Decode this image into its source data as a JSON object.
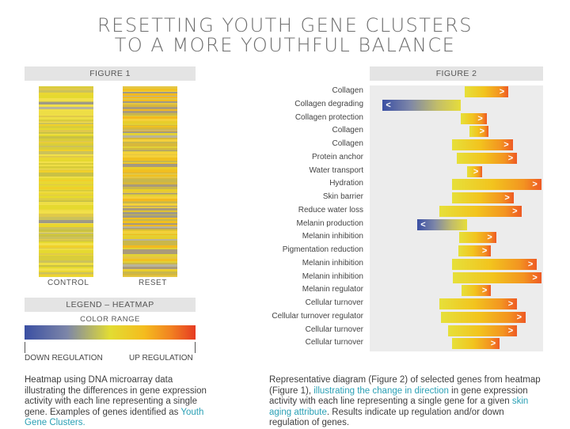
{
  "title": {
    "line1": "RESETTING YOUTH GENE CLUSTERS",
    "line2": "TO A MORE YOUTHFUL BALANCE"
  },
  "figure1": {
    "header": "FIGURE 1",
    "control_label": "CONTROL",
    "reset_label": "RESET"
  },
  "figure2": {
    "header": "FIGURE 2"
  },
  "legend": {
    "header": "LEGEND – HEATMAP",
    "color_range": "COLOR RANGE",
    "down": "DOWN REGULATION",
    "up": "UP REGULATION"
  },
  "colors": {
    "down": "#3a4fa3",
    "neutral": "#e2dc33",
    "up": "#e63b22",
    "accent": "#2aa0b5"
  },
  "caption_left": {
    "text": "Heatmap using DNA microarray data illustrating the differences in gene expression activity with each line representing a single gene. Examples of genes identified as ",
    "highlight": "Youth Gene Clusters."
  },
  "caption_right": {
    "part1": "Representative diagram (Figure 2) of selected genes from heatmap (Figure 1), ",
    "highlight1": "illustrating the change in direction",
    "part2": " in gene expression activity with each line representing a single gene for a given ",
    "highlight2": "skin aging attribute",
    "part3": ". Results indicate up regulation and/or down regulation of genes."
  },
  "chart_data": [
    {
      "type": "heatmap",
      "title": "FIGURE 1",
      "columns": [
        "CONTROL",
        "RESET"
      ],
      "color_scale": {
        "low": "DOWN REGULATION",
        "high": "UP REGULATION"
      }
    },
    {
      "type": "bar",
      "title": "FIGURE 2",
      "orientation": "horizontal-diverging",
      "xlim": [
        -1,
        1
      ],
      "genes": [
        {
          "label": "Collagen",
          "start": 0.1,
          "end": 0.6,
          "direction": "up"
        },
        {
          "label": "Collagen degrading",
          "start": -0.85,
          "end": 0.05,
          "direction": "down"
        },
        {
          "label": "Collagen protection",
          "start": 0.05,
          "end": 0.35,
          "direction": "up"
        },
        {
          "label": "Collagen",
          "start": 0.15,
          "end": 0.37,
          "direction": "up"
        },
        {
          "label": "Collagen",
          "start": -0.05,
          "end": 0.65,
          "direction": "up"
        },
        {
          "label": "Protein anchor",
          "start": 0.0,
          "end": 0.7,
          "direction": "up"
        },
        {
          "label": "Water transport",
          "start": 0.12,
          "end": 0.3,
          "direction": "up"
        },
        {
          "label": "Hydration",
          "start": -0.05,
          "end": 0.98,
          "direction": "up"
        },
        {
          "label": "Skin barrier",
          "start": -0.05,
          "end": 0.66,
          "direction": "up"
        },
        {
          "label": "Reduce water loss",
          "start": -0.2,
          "end": 0.75,
          "direction": "up"
        },
        {
          "label": "Melanin production",
          "start": -0.45,
          "end": 0.12,
          "direction": "down"
        },
        {
          "label": "Melanin inhibition",
          "start": 0.03,
          "end": 0.46,
          "direction": "up"
        },
        {
          "label": "Pigmentation reduction",
          "start": 0.02,
          "end": 0.4,
          "direction": "up"
        },
        {
          "label": "Melanin inhibition",
          "start": -0.05,
          "end": 0.93,
          "direction": "up"
        },
        {
          "label": "Melanin inhibition",
          "start": -0.04,
          "end": 0.98,
          "direction": "up"
        },
        {
          "label": "Melanin regulator",
          "start": 0.06,
          "end": 0.4,
          "direction": "up"
        },
        {
          "label": "Cellular turnover",
          "start": -0.2,
          "end": 0.7,
          "direction": "up"
        },
        {
          "label": "Cellular turnover regulator",
          "start": -0.18,
          "end": 0.8,
          "direction": "up"
        },
        {
          "label": "Cellular turnover",
          "start": -0.1,
          "end": 0.7,
          "direction": "up"
        },
        {
          "label": "Cellular turnover",
          "start": -0.05,
          "end": 0.5,
          "direction": "up"
        }
      ]
    }
  ]
}
